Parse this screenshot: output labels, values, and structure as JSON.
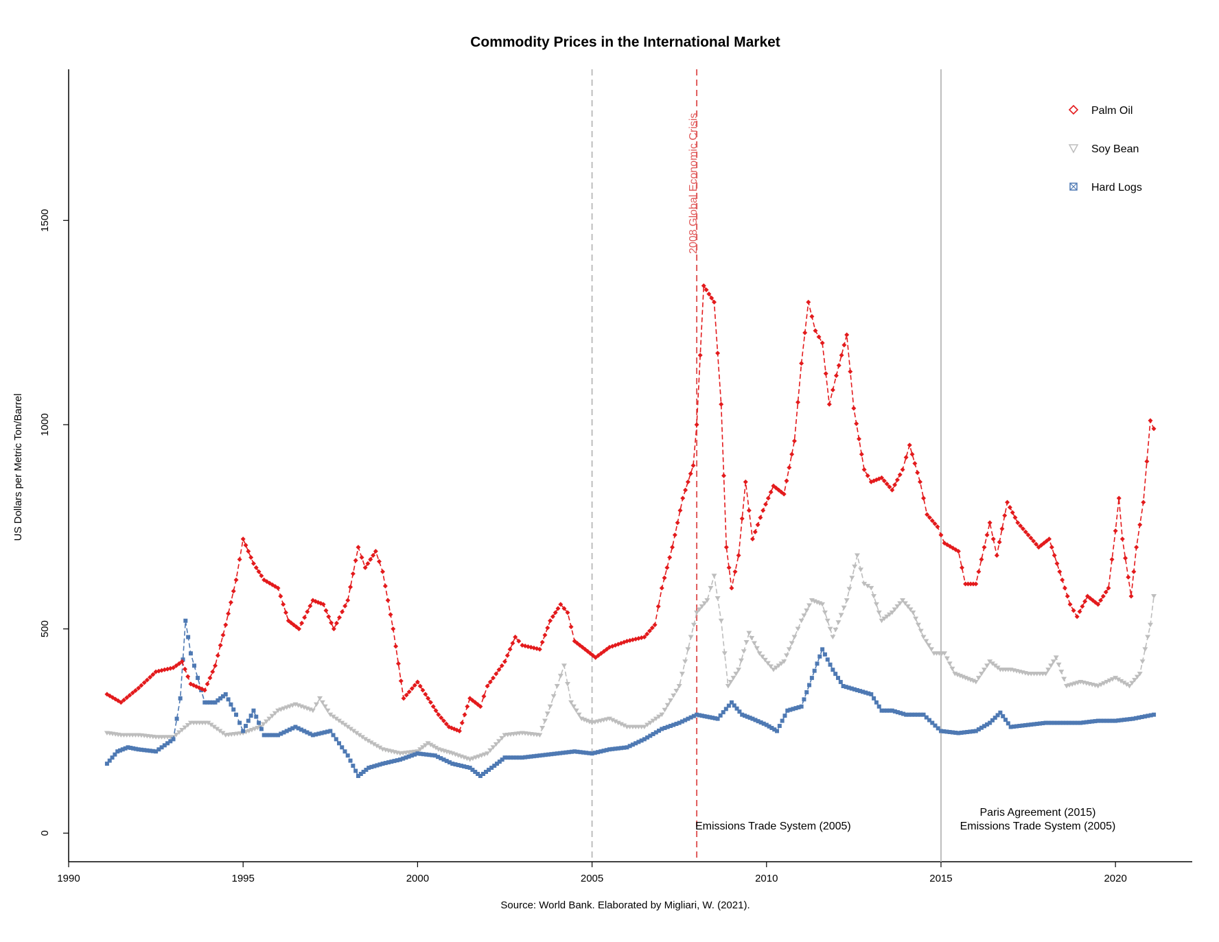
{
  "chart_data": {
    "type": "line",
    "title": "Commodity Prices in the International Market",
    "xlabel": "Source: World Bank. Elaborated by Migliari, W. (2021).",
    "ylabel": "US Dollars per Metric Ton/Barrel",
    "xlim": [
      1990,
      2022.2
    ],
    "ylim": [
      -70,
      1870
    ],
    "x_ticks": [
      1990,
      1995,
      2000,
      2005,
      2010,
      2015,
      2020
    ],
    "y_ticks": [
      0,
      500,
      1000,
      1500
    ],
    "legend_position": "top-right",
    "series": [
      {
        "name": "Palm Oil",
        "color": "#e31a1c",
        "marker": "diamond",
        "line": "dashed",
        "points": [
          [
            1991.1,
            340
          ],
          [
            1991.5,
            320
          ],
          [
            1992,
            355
          ],
          [
            1992.5,
            395
          ],
          [
            1993,
            405
          ],
          [
            1993.25,
            420
          ],
          [
            1993.5,
            365
          ],
          [
            1993.9,
            350
          ],
          [
            1994.2,
            410
          ],
          [
            1994.5,
            510
          ],
          [
            1994.8,
            620
          ],
          [
            1995.0,
            720
          ],
          [
            1995.3,
            660
          ],
          [
            1995.6,
            620
          ],
          [
            1996.0,
            600
          ],
          [
            1996.3,
            520
          ],
          [
            1996.6,
            500
          ],
          [
            1997.0,
            570
          ],
          [
            1997.3,
            560
          ],
          [
            1997.6,
            500
          ],
          [
            1998.0,
            570
          ],
          [
            1998.3,
            700
          ],
          [
            1998.5,
            650
          ],
          [
            1998.8,
            690
          ],
          [
            1999.0,
            640
          ],
          [
            1999.3,
            500
          ],
          [
            1999.6,
            330
          ],
          [
            2000.0,
            370
          ],
          [
            2000.3,
            330
          ],
          [
            2000.6,
            290
          ],
          [
            2000.9,
            260
          ],
          [
            2001.2,
            250
          ],
          [
            2001.5,
            330
          ],
          [
            2001.8,
            310
          ],
          [
            2002.0,
            360
          ],
          [
            2002.5,
            420
          ],
          [
            2002.8,
            480
          ],
          [
            2003.0,
            460
          ],
          [
            2003.5,
            450
          ],
          [
            2003.8,
            520
          ],
          [
            2004.1,
            560
          ],
          [
            2004.3,
            540
          ],
          [
            2004.5,
            470
          ],
          [
            2004.8,
            450
          ],
          [
            2005.1,
            430
          ],
          [
            2005.5,
            455
          ],
          [
            2006.0,
            470
          ],
          [
            2006.5,
            480
          ],
          [
            2006.8,
            510
          ],
          [
            2007.0,
            600
          ],
          [
            2007.3,
            700
          ],
          [
            2007.6,
            820
          ],
          [
            2007.9,
            900
          ],
          [
            2008.0,
            1000
          ],
          [
            2008.2,
            1340
          ],
          [
            2008.5,
            1300
          ],
          [
            2008.7,
            1050
          ],
          [
            2008.85,
            700
          ],
          [
            2009.0,
            600
          ],
          [
            2009.2,
            680
          ],
          [
            2009.4,
            860
          ],
          [
            2009.6,
            720
          ],
          [
            2009.9,
            790
          ],
          [
            2010.2,
            850
          ],
          [
            2010.5,
            830
          ],
          [
            2010.8,
            960
          ],
          [
            2011.0,
            1150
          ],
          [
            2011.2,
            1300
          ],
          [
            2011.4,
            1230
          ],
          [
            2011.6,
            1200
          ],
          [
            2011.8,
            1050
          ],
          [
            2012.0,
            1120
          ],
          [
            2012.3,
            1220
          ],
          [
            2012.5,
            1040
          ],
          [
            2012.8,
            890
          ],
          [
            2013.0,
            860
          ],
          [
            2013.3,
            870
          ],
          [
            2013.6,
            840
          ],
          [
            2013.9,
            890
          ],
          [
            2014.1,
            950
          ],
          [
            2014.4,
            860
          ],
          [
            2014.6,
            780
          ],
          [
            2014.9,
            750
          ],
          [
            2015.1,
            710
          ],
          [
            2015.5,
            690
          ],
          [
            2015.7,
            610
          ],
          [
            2016.0,
            610
          ],
          [
            2016.4,
            760
          ],
          [
            2016.6,
            680
          ],
          [
            2016.9,
            810
          ],
          [
            2017.2,
            760
          ],
          [
            2017.5,
            730
          ],
          [
            2017.8,
            700
          ],
          [
            2018.1,
            720
          ],
          [
            2018.4,
            640
          ],
          [
            2018.7,
            560
          ],
          [
            2018.9,
            530
          ],
          [
            2019.2,
            580
          ],
          [
            2019.5,
            560
          ],
          [
            2019.8,
            600
          ],
          [
            2020.0,
            740
          ],
          [
            2020.1,
            820
          ],
          [
            2020.2,
            720
          ],
          [
            2020.45,
            580
          ],
          [
            2020.6,
            700
          ],
          [
            2020.8,
            810
          ],
          [
            2021.0,
            1010
          ],
          [
            2021.1,
            990
          ]
        ]
      },
      {
        "name": "Soy Bean",
        "color": "#bdbdbd",
        "marker": "triangle-down",
        "line": "dashed",
        "points": [
          [
            1991.1,
            245
          ],
          [
            1991.5,
            240
          ],
          [
            1992.0,
            240
          ],
          [
            1992.5,
            235
          ],
          [
            1993.0,
            235
          ],
          [
            1993.5,
            270
          ],
          [
            1994.0,
            270
          ],
          [
            1994.5,
            240
          ],
          [
            1995.0,
            245
          ],
          [
            1995.5,
            260
          ],
          [
            1996.0,
            300
          ],
          [
            1996.5,
            315
          ],
          [
            1997.0,
            300
          ],
          [
            1997.2,
            330
          ],
          [
            1997.5,
            290
          ],
          [
            1998.0,
            260
          ],
          [
            1998.5,
            230
          ],
          [
            1999.0,
            205
          ],
          [
            1999.5,
            195
          ],
          [
            2000.0,
            200
          ],
          [
            2000.3,
            220
          ],
          [
            2000.6,
            205
          ],
          [
            2001.0,
            195
          ],
          [
            2001.5,
            180
          ],
          [
            2002.0,
            195
          ],
          [
            2002.5,
            240
          ],
          [
            2003.0,
            245
          ],
          [
            2003.5,
            240
          ],
          [
            2003.8,
            310
          ],
          [
            2004.0,
            360
          ],
          [
            2004.2,
            410
          ],
          [
            2004.4,
            320
          ],
          [
            2004.7,
            280
          ],
          [
            2005.0,
            270
          ],
          [
            2005.5,
            280
          ],
          [
            2006.0,
            260
          ],
          [
            2006.5,
            260
          ],
          [
            2007.0,
            290
          ],
          [
            2007.5,
            360
          ],
          [
            2008.0,
            540
          ],
          [
            2008.3,
            570
          ],
          [
            2008.5,
            630
          ],
          [
            2008.7,
            520
          ],
          [
            2008.9,
            360
          ],
          [
            2009.2,
            400
          ],
          [
            2009.5,
            490
          ],
          [
            2009.8,
            440
          ],
          [
            2010.2,
            400
          ],
          [
            2010.5,
            420
          ],
          [
            2010.8,
            480
          ],
          [
            2011.0,
            520
          ],
          [
            2011.3,
            570
          ],
          [
            2011.6,
            560
          ],
          [
            2011.9,
            480
          ],
          [
            2012.3,
            570
          ],
          [
            2012.6,
            680
          ],
          [
            2012.8,
            610
          ],
          [
            2013.0,
            600
          ],
          [
            2013.3,
            520
          ],
          [
            2013.6,
            540
          ],
          [
            2013.9,
            570
          ],
          [
            2014.2,
            540
          ],
          [
            2014.5,
            480
          ],
          [
            2014.8,
            440
          ],
          [
            2015.1,
            440
          ],
          [
            2015.4,
            390
          ],
          [
            2015.7,
            380
          ],
          [
            2016.0,
            370
          ],
          [
            2016.4,
            420
          ],
          [
            2016.7,
            400
          ],
          [
            2017.0,
            400
          ],
          [
            2017.5,
            390
          ],
          [
            2018.0,
            390
          ],
          [
            2018.3,
            430
          ],
          [
            2018.6,
            360
          ],
          [
            2019.0,
            370
          ],
          [
            2019.5,
            360
          ],
          [
            2020.0,
            380
          ],
          [
            2020.4,
            360
          ],
          [
            2020.7,
            390
          ],
          [
            2021.0,
            510
          ],
          [
            2021.1,
            580
          ]
        ]
      },
      {
        "name": "Hard Logs",
        "color": "#4e79b3",
        "marker": "square",
        "line": "dashed",
        "points": [
          [
            1991.1,
            170
          ],
          [
            1991.4,
            200
          ],
          [
            1991.7,
            210
          ],
          [
            1992.0,
            205
          ],
          [
            1992.5,
            200
          ],
          [
            1993.0,
            230
          ],
          [
            1993.2,
            330
          ],
          [
            1993.35,
            520
          ],
          [
            1993.5,
            440
          ],
          [
            1993.7,
            380
          ],
          [
            1993.9,
            320
          ],
          [
            1994.2,
            320
          ],
          [
            1994.5,
            340
          ],
          [
            1994.8,
            290
          ],
          [
            1995.0,
            250
          ],
          [
            1995.3,
            300
          ],
          [
            1995.6,
            240
          ],
          [
            1996.0,
            240
          ],
          [
            1996.5,
            260
          ],
          [
            1997.0,
            240
          ],
          [
            1997.5,
            250
          ],
          [
            1998.0,
            190
          ],
          [
            1998.3,
            140
          ],
          [
            1998.6,
            160
          ],
          [
            1999.0,
            170
          ],
          [
            1999.5,
            180
          ],
          [
            2000.0,
            195
          ],
          [
            2000.5,
            190
          ],
          [
            2001.0,
            170
          ],
          [
            2001.5,
            160
          ],
          [
            2001.8,
            140
          ],
          [
            2002.2,
            165
          ],
          [
            2002.5,
            185
          ],
          [
            2003.0,
            185
          ],
          [
            2003.5,
            190
          ],
          [
            2004.0,
            195
          ],
          [
            2004.5,
            200
          ],
          [
            2005.0,
            195
          ],
          [
            2005.5,
            205
          ],
          [
            2006.0,
            210
          ],
          [
            2006.5,
            230
          ],
          [
            2007.0,
            255
          ],
          [
            2007.5,
            270
          ],
          [
            2008.0,
            290
          ],
          [
            2008.3,
            285
          ],
          [
            2008.6,
            280
          ],
          [
            2009.0,
            320
          ],
          [
            2009.3,
            290
          ],
          [
            2009.6,
            280
          ],
          [
            2010.0,
            265
          ],
          [
            2010.3,
            250
          ],
          [
            2010.6,
            300
          ],
          [
            2011.0,
            310
          ],
          [
            2011.3,
            380
          ],
          [
            2011.6,
            450
          ],
          [
            2011.9,
            400
          ],
          [
            2012.2,
            360
          ],
          [
            2012.6,
            350
          ],
          [
            2013.0,
            340
          ],
          [
            2013.3,
            300
          ],
          [
            2013.6,
            300
          ],
          [
            2014.0,
            290
          ],
          [
            2014.5,
            290
          ],
          [
            2015.0,
            250
          ],
          [
            2015.5,
            245
          ],
          [
            2016.0,
            250
          ],
          [
            2016.4,
            270
          ],
          [
            2016.7,
            295
          ],
          [
            2017.0,
            260
          ],
          [
            2017.5,
            265
          ],
          [
            2018.0,
            270
          ],
          [
            2018.5,
            270
          ],
          [
            2019.0,
            270
          ],
          [
            2019.5,
            275
          ],
          [
            2020.0,
            275
          ],
          [
            2020.5,
            280
          ],
          [
            2021.1,
            290
          ]
        ]
      }
    ],
    "reference_lines": [
      {
        "x": 2005,
        "color": "#bdbdbd",
        "style": "dashed"
      },
      {
        "x": 2008,
        "color": "#e05a5a",
        "style": "dashed"
      },
      {
        "x": 2015,
        "color": "#bdbdbd",
        "style": "solid"
      }
    ],
    "annotations": {
      "crisis": "2008 Global Economic Crisis",
      "ets_left": "Emissions Trade System (2005)",
      "paris": "Paris Agreement (2015)",
      "ets_right": "Emissions Trade System (2005)"
    }
  }
}
